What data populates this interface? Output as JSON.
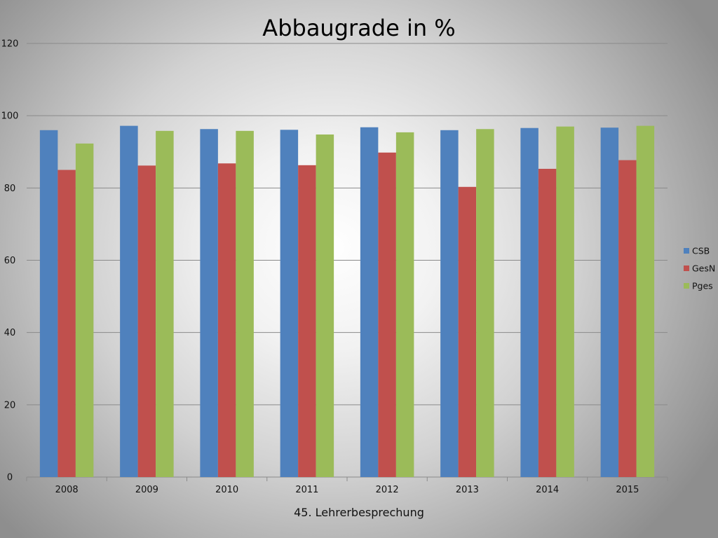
{
  "chart_data": {
    "type": "bar",
    "title": "Abbaugrade in %",
    "xlabel": "",
    "ylabel": "",
    "ylim": [
      0,
      120
    ],
    "yticks": [
      0,
      20,
      40,
      60,
      80,
      100,
      120
    ],
    "categories": [
      "2008",
      "2009",
      "2010",
      "2011",
      "2012",
      "2013",
      "2014",
      "2015"
    ],
    "series": [
      {
        "name": "CSB",
        "color": "#4f81bd",
        "values": [
          96,
          97.2,
          96.3,
          96.1,
          96.8,
          96,
          96.6,
          96.7
        ]
      },
      {
        "name": "GesN",
        "color": "#c0504d",
        "values": [
          85,
          86.2,
          86.8,
          86.3,
          89.8,
          80.3,
          85.3,
          87.7
        ]
      },
      {
        "name": "Pges",
        "color": "#9bbb59",
        "values": [
          92.3,
          95.8,
          95.8,
          94.8,
          95.4,
          96.3,
          97,
          97.2
        ]
      }
    ],
    "grid": true,
    "legend": "right"
  },
  "footer": {
    "text": "45. Lehrerbesprechung"
  }
}
